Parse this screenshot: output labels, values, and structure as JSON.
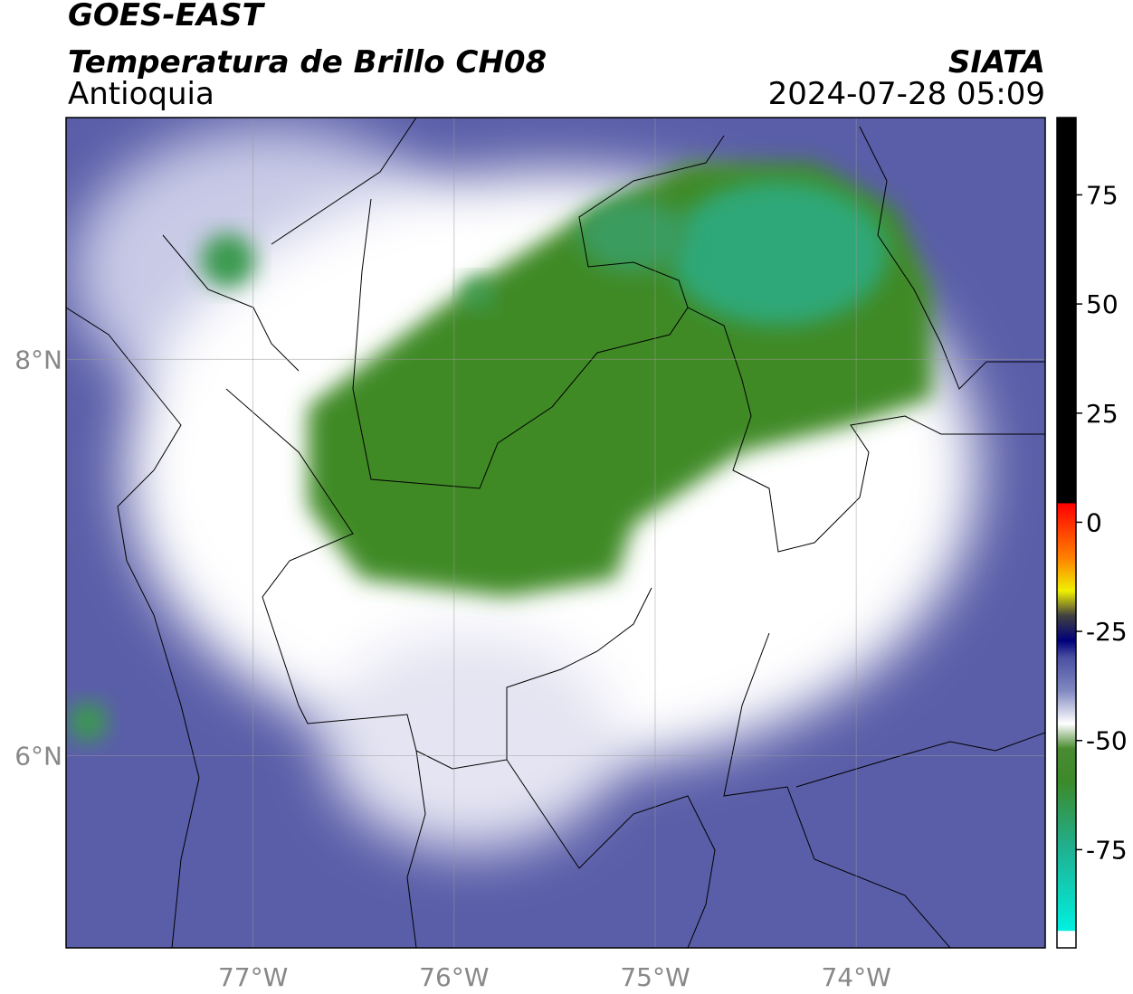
{
  "header": {
    "title": "GOES-EAST",
    "subtitle": "Temperatura de Brillo CH08",
    "region": "Antioquia",
    "source": "SIATA",
    "datetime": "2024-07-28 05:09"
  },
  "map": {
    "lon_extent": [
      -77.93,
      -73.06
    ],
    "lat_extent": [
      5.03,
      9.22
    ],
    "lon_ticks": [
      {
        "value": -77,
        "label": "77°W"
      },
      {
        "value": -76,
        "label": "76°W"
      },
      {
        "value": -75,
        "label": "75°W"
      },
      {
        "value": -74,
        "label": "74°W"
      }
    ],
    "lat_ticks": [
      {
        "value": 8,
        "label": "8°N"
      },
      {
        "value": 6,
        "label": "6°N"
      }
    ],
    "grid": true
  },
  "colorbar": {
    "lim": [
      -97.5,
      92.7
    ],
    "ticks": [
      75,
      50,
      25,
      0,
      -25,
      -50,
      -75
    ]
  }
}
